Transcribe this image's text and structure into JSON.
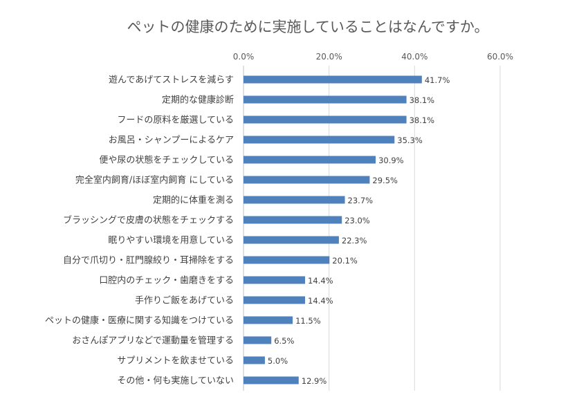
{
  "chart_data": {
    "type": "bar",
    "orientation": "horizontal",
    "title": "ペットの健康のために実施していることはなんですか。",
    "xlim": [
      0,
      60
    ],
    "ticks": [
      0,
      20,
      40,
      60
    ],
    "tick_labels": [
      "0.0%",
      "20.0%",
      "40.0%",
      "60.0%"
    ],
    "grid": true,
    "legend": "none",
    "bar_color": "#4f81bd",
    "categories": [
      "遊んであげてストレスを減らす",
      "定期的な健康診断",
      "フードの原料を厳選している",
      "お風呂・シャンプーによるケア",
      "便や尿の状態をチェックしている",
      "完全室内飼育/ほぼ室内飼育 にしている",
      "定期的に体重を測る",
      "ブラッシングで皮膚の状態をチェックする",
      "眠りやすい環境を用意している",
      "自分で爪切り・肛門腺絞り・耳掃除をする",
      "口腔内のチェック・歯磨きをする",
      "手作りご飯をあげている",
      "ペットの健康・医療に関する知識をつけている",
      "おさんぽアプリなどで運動量を管理する",
      "サプリメントを飲ませている",
      "その他・何も実施していない"
    ],
    "values": [
      41.7,
      38.1,
      38.1,
      35.3,
      30.9,
      29.5,
      23.7,
      23.0,
      22.3,
      20.1,
      14.4,
      14.4,
      11.5,
      6.5,
      5.0,
      12.9
    ],
    "data_labels": [
      "41.7%",
      "38.1%",
      "38.1%",
      "35.3%",
      "30.9%",
      "29.5%",
      "23.7%",
      "23.0%",
      "22.3%",
      "20.1%",
      "14.4%",
      "14.4%",
      "11.5%",
      "6.5%",
      "5.0%",
      "12.9%"
    ]
  }
}
